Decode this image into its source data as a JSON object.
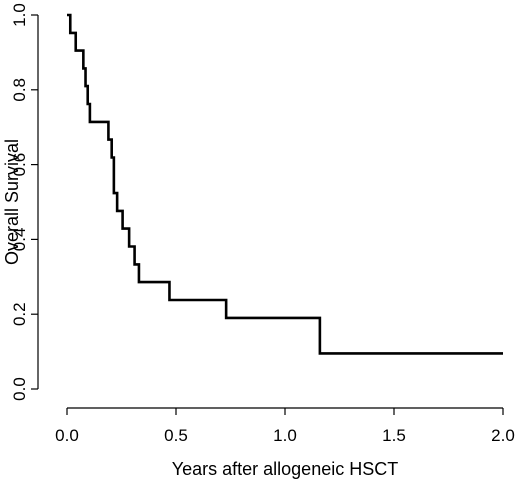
{
  "chart_data": {
    "type": "line",
    "step": true,
    "title": "",
    "xlabel": "Years after allogeneic HSCT",
    "ylabel": "Overall Survival",
    "xlim": [
      0,
      2
    ],
    "ylim": [
      0,
      1
    ],
    "xticks": [
      0,
      0.5,
      1,
      1.5,
      2
    ],
    "xtick_labels": [
      "0.0",
      "0.5",
      "1.0",
      "1.5",
      "2.0"
    ],
    "yticks": [
      0,
      0.2,
      0.4,
      0.6,
      0.8,
      1
    ],
    "ytick_labels": [
      "0.0",
      "0.2",
      "0.4",
      "0.6",
      "0.8",
      "1.0"
    ],
    "grid": false,
    "series": [
      {
        "x": [
          0,
          0.015,
          0.04,
          0.075,
          0.085,
          0.095,
          0.105,
          0.19,
          0.205,
          0.215,
          0.23,
          0.255,
          0.285,
          0.31,
          0.33,
          0.47,
          0.73,
          1.16,
          2.0
        ],
        "y": [
          1.0,
          0.952,
          0.905,
          0.857,
          0.81,
          0.762,
          0.714,
          0.667,
          0.619,
          0.524,
          0.476,
          0.429,
          0.381,
          0.333,
          0.286,
          0.238,
          0.19,
          0.095,
          0.095
        ]
      }
    ]
  }
}
